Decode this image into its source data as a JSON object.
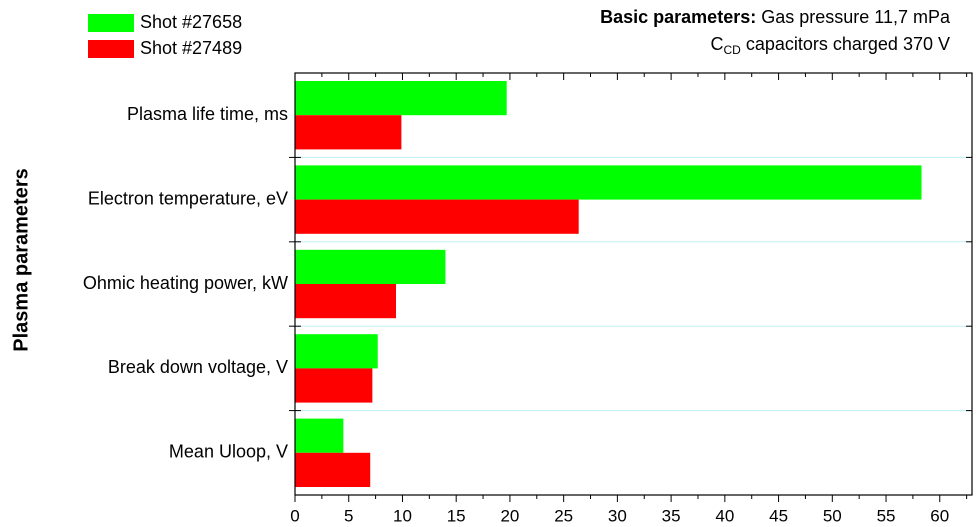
{
  "chart_data": {
    "type": "barh",
    "annotations": {
      "heading": "Basic parameters:",
      "pressure": "Gas pressure 11,7 mPa",
      "capacitor_symbol": "C",
      "capacitor_subscript": "CD",
      "capacitor_text": "capacitors charged 370 V"
    },
    "ylabel": "Plasma parameters",
    "categories": [
      "Plasma life time, ms",
      "Electron temperature, eV",
      "Ohmic heating power, kW",
      "Break down voltage, V",
      "Mean Uloop, V"
    ],
    "series": [
      {
        "name": "Shot #27658",
        "color": "#00ff00",
        "values": [
          19.7,
          58.3,
          14.0,
          7.7,
          4.5
        ]
      },
      {
        "name": "Shot #27489",
        "color": "#ff0000",
        "values": [
          9.9,
          26.4,
          9.4,
          7.2,
          7.0
        ]
      }
    ],
    "xlim": [
      0,
      63
    ],
    "xticks": [
      0,
      5,
      10,
      15,
      20,
      25,
      30,
      35,
      40,
      45,
      50,
      55,
      60
    ],
    "separator_color": "#bfeff5"
  }
}
